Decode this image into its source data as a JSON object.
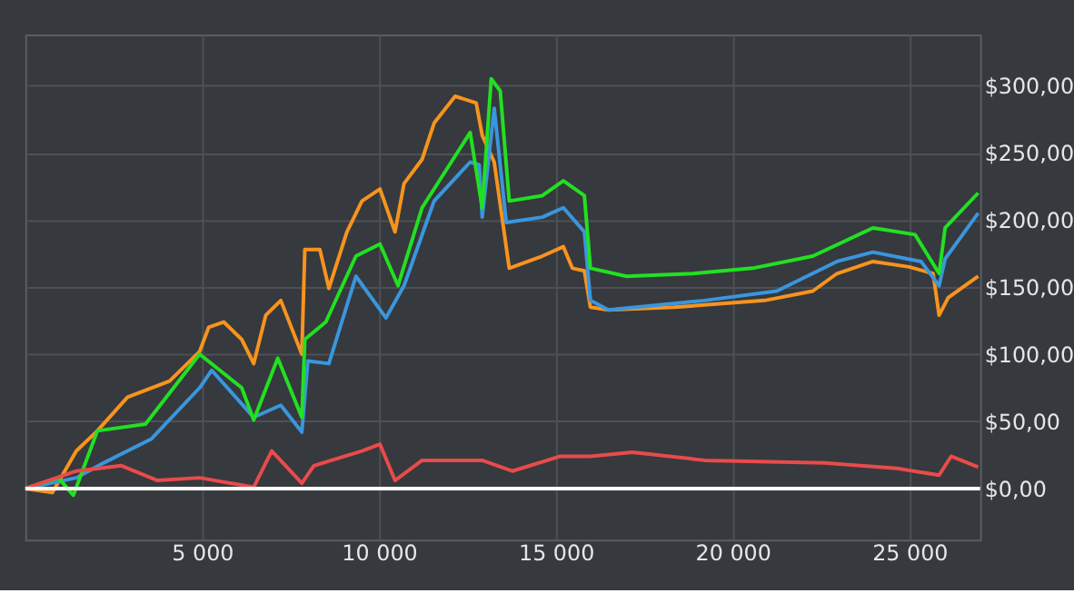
{
  "chart_data": {
    "type": "line",
    "xlim": [
      0,
      27000
    ],
    "ylim": [
      -38,
      338
    ],
    "xticks": [
      {
        "value": 5000,
        "label": "5 000"
      },
      {
        "value": 10000,
        "label": "10 000"
      },
      {
        "value": 15000,
        "label": "15 000"
      },
      {
        "value": 20000,
        "label": "20 000"
      },
      {
        "value": 25000,
        "label": "25 000"
      }
    ],
    "yticks": [
      {
        "value": 0,
        "label": "$0,00"
      },
      {
        "value": 50,
        "label": "$50,00"
      },
      {
        "value": 100,
        "label": "$100,00"
      },
      {
        "value": 150,
        "label": "$150,00"
      },
      {
        "value": 200,
        "label": "$200,00"
      },
      {
        "value": 250,
        "label": "$250,00"
      },
      {
        "value": 300,
        "label": "$300,00"
      }
    ],
    "grid": true,
    "marker": "none",
    "line_style": "solid",
    "ref_lines": [
      {
        "axis": "y",
        "value": 0,
        "color": "#ffffff"
      }
    ],
    "series": [
      {
        "color": "#f7941d",
        "x": [
          0,
          765,
          1445,
          2040,
          2890,
          4080,
          4930,
          5185,
          5610,
          6120,
          6460,
          6800,
          7225,
          7820,
          7905,
          8330,
          8585,
          9095,
          9520,
          10030,
          10455,
          10710,
          11220,
          11560,
          12155,
          12750,
          12920,
          13260,
          13685,
          14620,
          15215,
          15470,
          15810,
          15980,
          16490,
          18360,
          20910,
          22270,
          22950,
          23970,
          24990,
          25670,
          25840,
          26095,
          26945
        ],
        "values": [
          0,
          -3,
          28,
          43,
          68,
          80,
          102,
          120,
          124,
          111,
          93,
          129,
          140,
          100,
          178,
          178,
          149,
          191,
          214,
          223,
          191,
          227,
          245,
          272,
          292,
          287,
          263,
          243,
          164,
          173,
          180,
          164,
          162,
          135,
          133,
          135,
          140,
          147,
          160,
          169,
          165,
          160,
          129,
          142,
          158
        ]
      },
      {
        "color": "#3a96dd",
        "x": [
          0,
          1445,
          2210,
          3570,
          4930,
          5270,
          6460,
          7225,
          7820,
          7990,
          8585,
          9350,
          10200,
          10710,
          11560,
          12580,
          12835,
          12920,
          13260,
          13600,
          14620,
          15215,
          15810,
          15980,
          16490,
          19210,
          21250,
          22950,
          23970,
          25330,
          25840,
          26010,
          26945
        ],
        "values": [
          0,
          8,
          19,
          37,
          75,
          88,
          53,
          62,
          42,
          95,
          93,
          158,
          127,
          151,
          214,
          243,
          241,
          202,
          283,
          198,
          202,
          209,
          191,
          140,
          133,
          140,
          147,
          169,
          176,
          169,
          151,
          171,
          205
        ]
      },
      {
        "color": "#22e022",
        "x": [
          0,
          935,
          1360,
          2040,
          3400,
          4930,
          6120,
          6460,
          7140,
          7820,
          7905,
          8500,
          9350,
          10030,
          10540,
          11220,
          12580,
          12920,
          13175,
          13430,
          13685,
          14620,
          15215,
          15810,
          15980,
          17000,
          18870,
          20570,
          22270,
          23970,
          25160,
          25840,
          26010,
          26945
        ],
        "values": [
          0,
          8,
          -5,
          43,
          48,
          100,
          75,
          51,
          97,
          53,
          111,
          124,
          173,
          182,
          151,
          209,
          265,
          209,
          305,
          296,
          214,
          218,
          229,
          218,
          164,
          158,
          160,
          164,
          173,
          194,
          189,
          160,
          194,
          220
        ]
      },
      {
        "color": "#e84b4b",
        "x": [
          0,
          1445,
          2720,
          3740,
          4930,
          6460,
          6970,
          7820,
          8160,
          9520,
          10030,
          10455,
          11220,
          12920,
          13770,
          15130,
          15980,
          17170,
          19210,
          22610,
          24650,
          25840,
          26180,
          26945
        ],
        "values": [
          0,
          13,
          17,
          6,
          8,
          1,
          28,
          4,
          17,
          28,
          33,
          6,
          21,
          21,
          13,
          24,
          24,
          27,
          21,
          19,
          15,
          10,
          24,
          16
        ]
      }
    ]
  }
}
